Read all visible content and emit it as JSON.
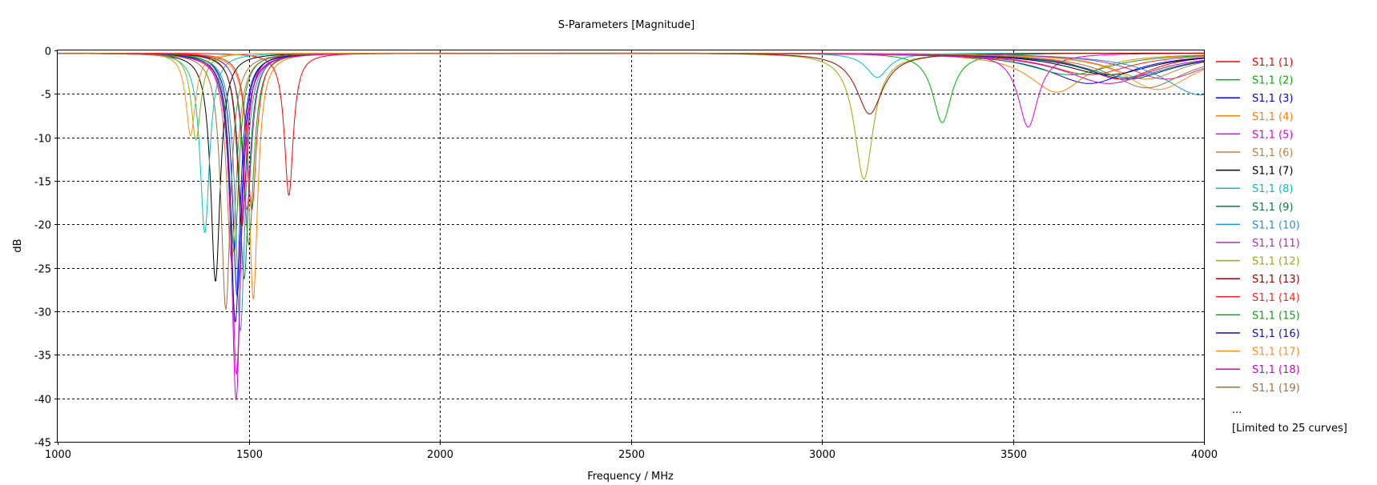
{
  "chart_data": {
    "type": "line",
    "title": "S-Parameters [Magnitude]",
    "xlabel": "Frequency / MHz",
    "ylabel": "dB",
    "xlim": [
      1000,
      4000
    ],
    "ylim": [
      -45,
      0
    ],
    "xticks": [
      1000,
      1500,
      2000,
      2500,
      3000,
      3500,
      4000
    ],
    "yticks": [
      0,
      -5,
      -10,
      -15,
      -20,
      -25,
      -30,
      -35,
      -40,
      -45
    ],
    "grid": "dashed",
    "legend_position": "right",
    "legend_ellipsis": "...",
    "legend_note": "[Limited to 25 curves]",
    "series": [
      {
        "name": "S1,1 (1)",
        "color": "#ff0000",
        "dips": [
          [
            1605,
            -16.4,
            14
          ],
          [
            3780,
            -3.0,
            110
          ]
        ]
      },
      {
        "name": "S1,1 (2)",
        "color": "#00b000",
        "dips": [
          [
            1500,
            -22.0,
            16
          ],
          [
            3315,
            -8.0,
            30
          ]
        ]
      },
      {
        "name": "S1,1 (3)",
        "color": "#0000ff",
        "dips": [
          [
            1470,
            -28.0,
            15
          ],
          [
            3700,
            -3.5,
            130
          ]
        ]
      },
      {
        "name": "S1,1 (4)",
        "color": "#ff8000",
        "dips": [
          [
            1512,
            -28.3,
            14
          ],
          [
            3615,
            -4.5,
            90
          ]
        ]
      },
      {
        "name": "S1,1 (5)",
        "color": "#e000e0",
        "dips": [
          [
            1468,
            -37.0,
            15
          ],
          [
            3540,
            -8.5,
            32
          ]
        ]
      },
      {
        "name": "S1,1 (6)",
        "color": "#c08040",
        "dips": [
          [
            1455,
            -24.0,
            16
          ],
          [
            3850,
            -3.0,
            110
          ]
        ]
      },
      {
        "name": "S1,1 (7)",
        "color": "#000000",
        "dips": [
          [
            1413,
            -26.3,
            15
          ],
          [
            3750,
            -2.5,
            140
          ]
        ]
      },
      {
        "name": "S1,1 (8)",
        "color": "#00c0c0",
        "dips": [
          [
            1385,
            -20.7,
            15
          ],
          [
            3145,
            -2.8,
            35
          ]
        ]
      },
      {
        "name": "S1,1 (9)",
        "color": "#008040",
        "dips": [
          [
            1488,
            -26.0,
            15
          ],
          [
            3800,
            -2.8,
            140
          ]
        ]
      },
      {
        "name": "S1,1 (10)",
        "color": "#2090e0",
        "dips": [
          [
            1478,
            -32.0,
            15
          ],
          [
            3990,
            -4.8,
            120
          ]
        ]
      },
      {
        "name": "S1,1 (11)",
        "color": "#b030b0",
        "dips": [
          [
            1495,
            -18.0,
            16
          ],
          [
            3900,
            -3.0,
            120
          ]
        ]
      },
      {
        "name": "S1,1 (12)",
        "color": "#90b000",
        "dips": [
          [
            1362,
            -10.0,
            15
          ],
          [
            3110,
            -14.5,
            30
          ]
        ]
      },
      {
        "name": "S1,1 (13)",
        "color": "#a00000",
        "dips": [
          [
            1482,
            -20.0,
            15
          ],
          [
            3125,
            -7.0,
            42
          ]
        ]
      },
      {
        "name": "S1,1 (14)",
        "color": "#ff2020",
        "dips": [
          [
            1508,
            -18.0,
            15
          ],
          [
            3700,
            -2.5,
            130
          ]
        ]
      },
      {
        "name": "S1,1 (15)",
        "color": "#10a010",
        "dips": [
          [
            1462,
            -23.0,
            15
          ],
          [
            3650,
            -2.5,
            130
          ]
        ]
      },
      {
        "name": "S1,1 (16)",
        "color": "#1010c0",
        "dips": [
          [
            1465,
            -31.0,
            15
          ],
          [
            3800,
            -3.0,
            140
          ]
        ]
      },
      {
        "name": "S1,1 (17)",
        "color": "#ff9020",
        "dips": [
          [
            1348,
            -9.5,
            15
          ],
          [
            3880,
            -4.2,
            110
          ]
        ]
      },
      {
        "name": "S1,1 (18)",
        "color": "#d000d0",
        "dips": [
          [
            1467,
            -40.0,
            15
          ],
          [
            3750,
            -3.5,
            140
          ]
        ]
      },
      {
        "name": "S1,1 (19)",
        "color": "#a07040",
        "dips": [
          [
            1440,
            -29.5,
            15
          ],
          [
            3850,
            -4.0,
            120
          ]
        ]
      }
    ]
  }
}
